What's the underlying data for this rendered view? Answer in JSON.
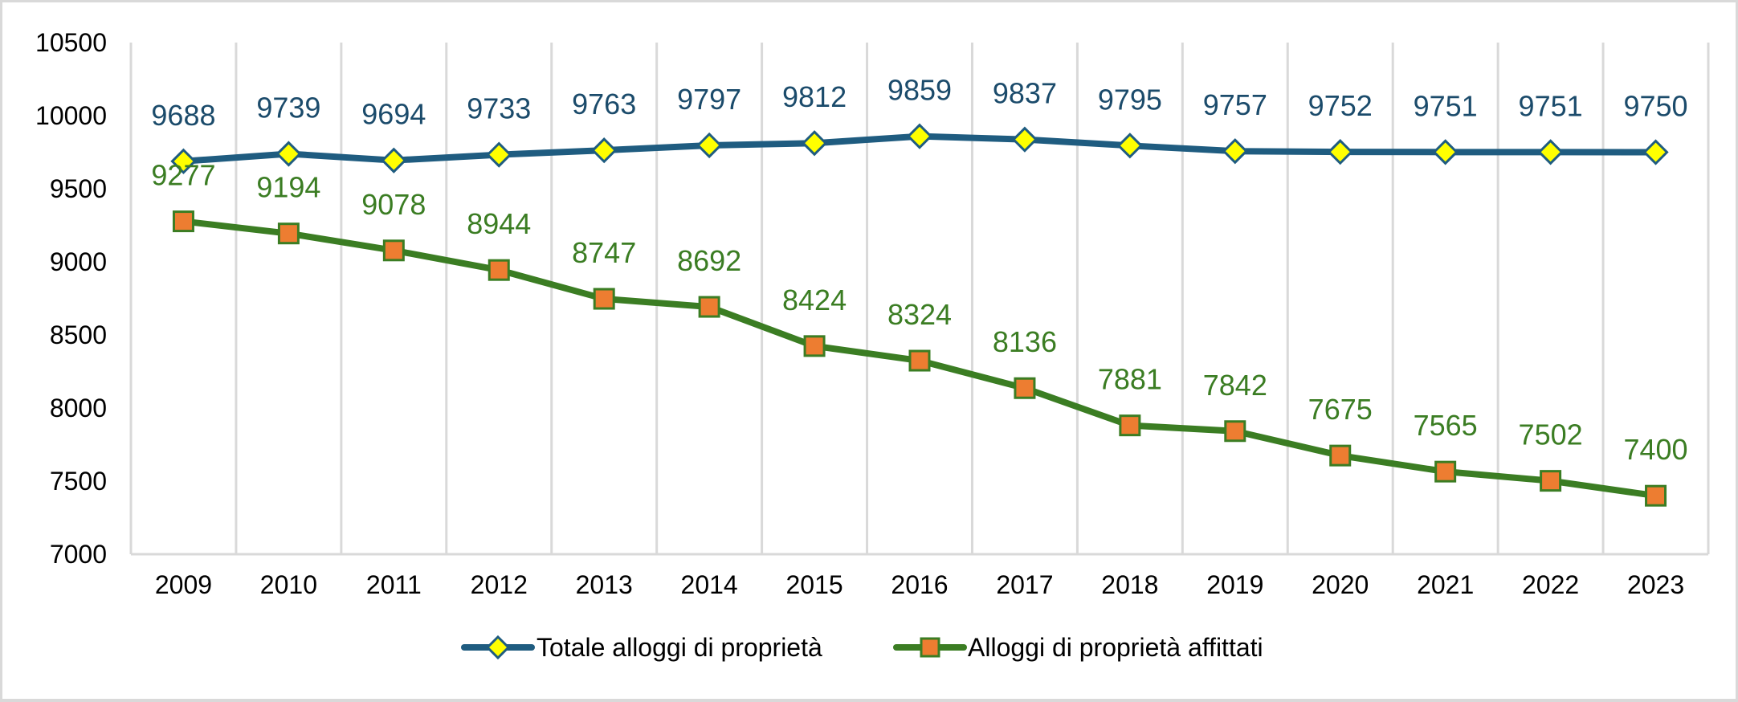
{
  "chart_data": {
    "type": "line",
    "title": "",
    "xlabel": "",
    "ylabel": "",
    "x": [
      "2009",
      "2010",
      "2011",
      "2012",
      "2013",
      "2014",
      "2015",
      "2016",
      "2017",
      "2018",
      "2019",
      "2020",
      "2021",
      "2022",
      "2023"
    ],
    "ylim": [
      7000,
      10500
    ],
    "yticks": [
      7000,
      7500,
      8000,
      8500,
      9000,
      9500,
      10000,
      10500
    ],
    "grid": "vertical",
    "legend_position": "bottom",
    "series": [
      {
        "name": "Totale alloggi di proprietà",
        "color": "#1f5c80",
        "label_color": "#1b4b6b",
        "marker": "diamond",
        "marker_fill": "#ffff00",
        "values": [
          9688,
          9739,
          9694,
          9733,
          9763,
          9797,
          9812,
          9859,
          9837,
          9795,
          9757,
          9752,
          9751,
          9751,
          9750
        ]
      },
      {
        "name": "Alloggi di proprietà affittati",
        "color": "#3b7d23",
        "label_color": "#3b7d23",
        "marker": "square",
        "marker_fill": "#ed7d31",
        "values": [
          9277,
          9194,
          9078,
          8944,
          8747,
          8692,
          8424,
          8324,
          8136,
          7881,
          7842,
          7675,
          7565,
          7502,
          7400
        ]
      }
    ]
  }
}
